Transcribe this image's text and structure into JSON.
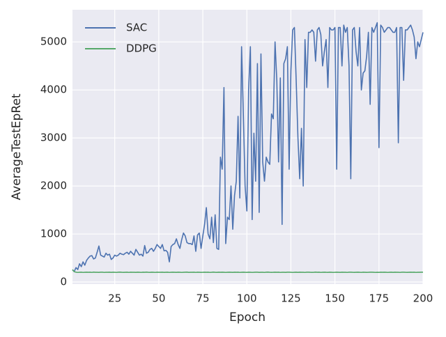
{
  "chart_data": {
    "type": "line",
    "xlabel": "Epoch",
    "ylabel": "AverageTestEpRet",
    "x": [
      1,
      2,
      3,
      4,
      5,
      6,
      7,
      8,
      9,
      10,
      11,
      12,
      13,
      14,
      15,
      16,
      17,
      18,
      19,
      20,
      21,
      22,
      23,
      24,
      25,
      26,
      27,
      28,
      29,
      30,
      31,
      32,
      33,
      34,
      35,
      36,
      37,
      38,
      39,
      40,
      41,
      42,
      43,
      44,
      45,
      46,
      47,
      48,
      49,
      50,
      51,
      52,
      53,
      54,
      55,
      56,
      57,
      58,
      59,
      60,
      61,
      62,
      63,
      64,
      65,
      66,
      67,
      68,
      69,
      70,
      71,
      72,
      73,
      74,
      75,
      76,
      77,
      78,
      79,
      80,
      81,
      82,
      83,
      84,
      85,
      86,
      87,
      88,
      89,
      90,
      91,
      92,
      93,
      94,
      95,
      96,
      97,
      98,
      99,
      100,
      101,
      102,
      103,
      104,
      105,
      106,
      107,
      108,
      109,
      110,
      111,
      112,
      113,
      114,
      115,
      116,
      117,
      118,
      119,
      120,
      121,
      122,
      123,
      124,
      125,
      126,
      127,
      128,
      129,
      130,
      131,
      132,
      133,
      134,
      135,
      136,
      137,
      138,
      139,
      140,
      141,
      142,
      143,
      144,
      145,
      146,
      147,
      148,
      149,
      150,
      151,
      152,
      153,
      154,
      155,
      156,
      157,
      158,
      159,
      160,
      161,
      162,
      163,
      164,
      165,
      166,
      167,
      168,
      169,
      170,
      171,
      172,
      173,
      174,
      175,
      176,
      177,
      178,
      179,
      180,
      181,
      182,
      183,
      184,
      185,
      186,
      187,
      188,
      189,
      190,
      191,
      192,
      193,
      194,
      195,
      196,
      197,
      198,
      199,
      200
    ],
    "series": [
      {
        "name": "SAC",
        "color": "#4c72b0",
        "values": [
          250,
          220,
          300,
          260,
          380,
          320,
          420,
          350,
          450,
          500,
          540,
          550,
          480,
          500,
          620,
          750,
          560,
          540,
          520,
          600,
          560,
          580,
          470,
          500,
          560,
          540,
          560,
          600,
          580,
          570,
          600,
          620,
          580,
          640,
          600,
          560,
          680,
          620,
          560,
          580,
          540,
          760,
          600,
          620,
          680,
          700,
          640,
          700,
          780,
          740,
          700,
          780,
          650,
          660,
          620,
          420,
          740,
          780,
          800,
          900,
          780,
          700,
          880,
          1020,
          960,
          820,
          800,
          800,
          780,
          960,
          640,
          980,
          1020,
          700,
          960,
          1200,
          1550,
          1000,
          900,
          1350,
          820,
          1400,
          700,
          680,
          2600,
          2350,
          4050,
          800,
          1350,
          1300,
          2000,
          1100,
          1800,
          2100,
          3450,
          1750,
          4900,
          3500,
          2000,
          1480,
          4000,
          4900,
          1300,
          3100,
          2100,
          4550,
          1450,
          4750,
          2500,
          2100,
          2600,
          2500,
          2450,
          3500,
          3400,
          5000,
          4200,
          2500,
          4250,
          1200,
          4550,
          4650,
          4900,
          2350,
          4400,
          5250,
          5300,
          4200,
          3000,
          2150,
          3200,
          2000,
          5050,
          4050,
          5200,
          5200,
          5250,
          5200,
          4600,
          5250,
          5300,
          5150,
          4500,
          4800,
          5050,
          4050,
          5300,
          5250,
          5250,
          5300,
          2350,
          5300,
          5300,
          4500,
          5350,
          5200,
          5300,
          4500,
          2150,
          5250,
          5300,
          4800,
          4500,
          5300,
          4000,
          4350,
          4400,
          4700,
          5200,
          3700,
          5300,
          5200,
          5300,
          5400,
          2800,
          5350,
          5300,
          5200,
          5250,
          5300,
          5300,
          5250,
          5200,
          5200,
          5300,
          2900,
          5300,
          5300,
          4200,
          5250,
          5250,
          5300,
          5350,
          5250,
          5100,
          4650,
          5000,
          4900,
          5050,
          5200
        ]
      },
      {
        "name": "DDPG",
        "color": "#55a868",
        "values": [
          260,
          215,
          205,
          200,
          202,
          204,
          200,
          203,
          205,
          202,
          204,
          200,
          206,
          202,
          203,
          201,
          205,
          204,
          200,
          203,
          202,
          205,
          201,
          204,
          203,
          200,
          204,
          206,
          202,
          201,
          203,
          205,
          200,
          204,
          202,
          203,
          201,
          205,
          203,
          200,
          204,
          202,
          206,
          203,
          201,
          204,
          202,
          200,
          205,
          203,
          202,
          204,
          201,
          203,
          205,
          200,
          202,
          204,
          203,
          201,
          205,
          203,
          200,
          202,
          204,
          206,
          201,
          203,
          202,
          205,
          200,
          204,
          203,
          201,
          202,
          205,
          203,
          204,
          200,
          202,
          206,
          203,
          201,
          204,
          202,
          205,
          203,
          200,
          202,
          204,
          203,
          201,
          205,
          202,
          204,
          200,
          203,
          205,
          202,
          201,
          204,
          203,
          200,
          202,
          205,
          204,
          201,
          203,
          202,
          200,
          204,
          206,
          203,
          201,
          202,
          205,
          203,
          204,
          200,
          202,
          203,
          201,
          205,
          204,
          202,
          200,
          203,
          205,
          201,
          204,
          202,
          203,
          200,
          205,
          204,
          202,
          201,
          203,
          206,
          202,
          204,
          200,
          203,
          205,
          202,
          201,
          204,
          203,
          200,
          202,
          205,
          203,
          201,
          204,
          202,
          203,
          200,
          205,
          204,
          202,
          201,
          203,
          205,
          202,
          200,
          204,
          203,
          201,
          202,
          205,
          204,
          203,
          200,
          202,
          201,
          205,
          203,
          204,
          202,
          200,
          203,
          205,
          201,
          204,
          202,
          203,
          200,
          205,
          204,
          202,
          201,
          203,
          205,
          202,
          204,
          200,
          203,
          202,
          204,
          205
        ]
      }
    ],
    "xlim": [
      1,
      200
    ],
    "ylim": [
      -43,
      5670
    ],
    "xticks": [
      25,
      50,
      75,
      100,
      125,
      150,
      175,
      200
    ],
    "yticks": [
      0,
      1000,
      2000,
      3000,
      4000,
      5000
    ],
    "grid": true,
    "legend": "upper-left"
  }
}
